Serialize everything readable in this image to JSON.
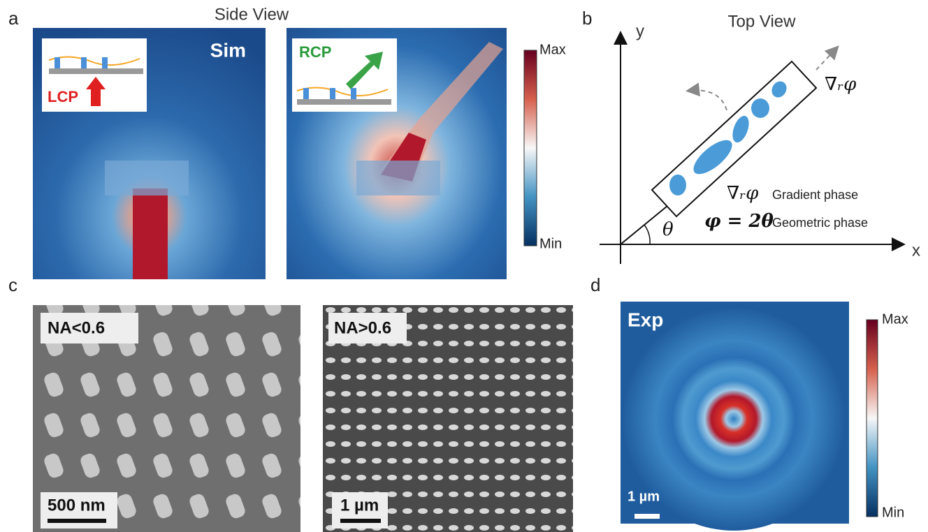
{
  "panel_a": {
    "label": "a",
    "title": "Side View",
    "sim_label": "Sim",
    "inset_left": "LCP",
    "inset_right": "RCP",
    "colorbar": {
      "max": "Max",
      "min": "Min"
    }
  },
  "panel_b": {
    "label": "b",
    "title": "Top View",
    "axis_y": "y",
    "axis_x": "x",
    "gradient_symbol_top": "∇ᵣφ",
    "gradient_symbol": "∇ᵣφ",
    "gradient_text": "Gradient phase",
    "geometric_formula": "φ = 2θ",
    "geometric_text": "Geometric phase",
    "angle": "θ"
  },
  "panel_c": {
    "label": "c",
    "left_label": "NA<0.6",
    "left_scale": "500 nm",
    "right_label": "NA>0.6",
    "right_scale": "1 µm"
  },
  "panel_d": {
    "label": "d",
    "exp_label": "Exp",
    "scale": "1 µm",
    "colorbar": {
      "max": "Max",
      "min": "Min"
    }
  }
}
